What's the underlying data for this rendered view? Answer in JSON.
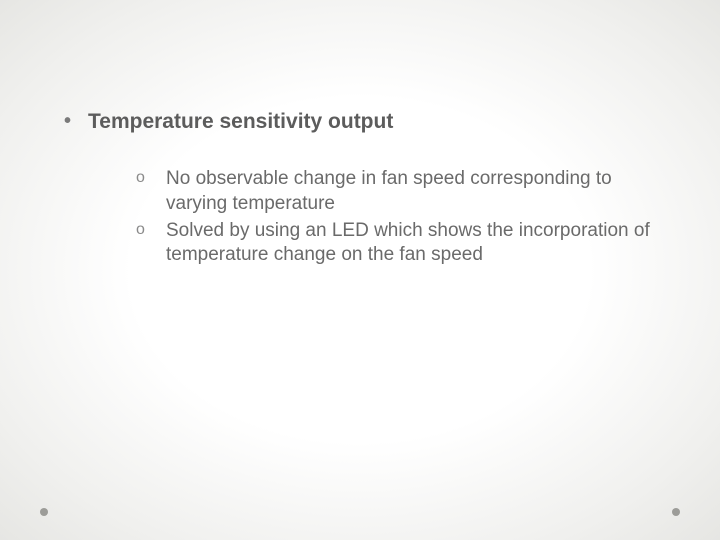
{
  "slide": {
    "background": {
      "center_color": "#ffffff",
      "edge_color": "#e6e6e3",
      "vignette": "radial"
    },
    "text_colors": {
      "level1": "#5c5c5c",
      "level2": "#6a6a6a",
      "bullet1": "#7a7a7a",
      "bullet2": "#8a8a8a"
    },
    "font_sizes": {
      "level1": 21,
      "level2": 19
    },
    "heading": "Temperature sensitivity output",
    "sub_items": [
      "No observable change in fan speed corresponding to varying temperature",
      "Solved by using an LED which shows the incorporation of temperature change on the fan speed"
    ],
    "decorative_dot_color": "#9c9c98"
  }
}
